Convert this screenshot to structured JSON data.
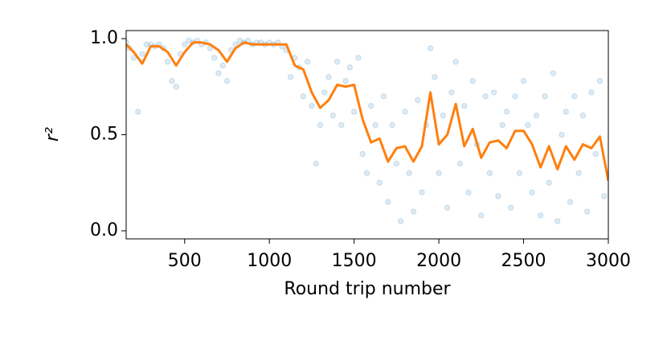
{
  "chart_data": {
    "type": "scatter",
    "xlabel": "Round trip number",
    "ylabel": "r²",
    "xlim": [
      155,
      3000
    ],
    "ylim": [
      -0.042,
      1.042
    ],
    "xticks": [
      500,
      1000,
      1500,
      2000,
      2500,
      3000
    ],
    "yticks": [
      {
        "value": 0,
        "label": "0.0"
      },
      {
        "value": 0.5,
        "label": "0.5"
      },
      {
        "value": 1,
        "label": "1.0"
      }
    ],
    "series": [
      {
        "type": "scatter",
        "color": "#1f77b4",
        "x": [
          155,
          175,
          200,
          225,
          250,
          275,
          300,
          325,
          350,
          375,
          400,
          425,
          450,
          475,
          500,
          525,
          550,
          575,
          600,
          625,
          650,
          675,
          700,
          725,
          750,
          775,
          800,
          825,
          850,
          875,
          900,
          925,
          950,
          975,
          1000,
          1025,
          1050,
          1075,
          1100,
          1125,
          1150,
          1175,
          1200,
          1225,
          1250,
          1275,
          1300,
          1325,
          1350,
          1375,
          1400,
          1425,
          1450,
          1475,
          1500,
          1525,
          1550,
          1575,
          1600,
          1625,
          1650,
          1675,
          1700,
          1725,
          1750,
          1775,
          1800,
          1825,
          1850,
          1875,
          1900,
          1925,
          1950,
          1975,
          2000,
          2025,
          2050,
          2075,
          2100,
          2125,
          2150,
          2175,
          2200,
          2225,
          2250,
          2275,
          2300,
          2325,
          2350,
          2375,
          2400,
          2425,
          2450,
          2475,
          2500,
          2525,
          2550,
          2575,
          2600,
          2625,
          2650,
          2675,
          2700,
          2725,
          2750,
          2775,
          2800,
          2825,
          2850,
          2875,
          2900,
          2925,
          2950,
          2975
        ],
        "values": [
          0.98,
          0.95,
          0.9,
          0.62,
          0.92,
          0.97,
          0.97,
          0.96,
          0.97,
          0.95,
          0.88,
          0.78,
          0.75,
          0.92,
          0.97,
          0.99,
          0.98,
          0.99,
          0.97,
          0.98,
          0.95,
          0.9,
          0.82,
          0.86,
          0.78,
          0.94,
          0.97,
          0.99,
          0.98,
          0.99,
          0.97,
          0.98,
          0.98,
          0.97,
          0.98,
          0.97,
          0.98,
          0.96,
          0.94,
          0.8,
          0.9,
          0.85,
          0.7,
          0.88,
          0.65,
          0.35,
          0.55,
          0.72,
          0.8,
          0.6,
          0.88,
          0.55,
          0.78,
          0.85,
          0.62,
          0.9,
          0.4,
          0.3,
          0.65,
          0.55,
          0.25,
          0.7,
          0.15,
          0.55,
          0.35,
          0.05,
          0.62,
          0.3,
          0.1,
          0.68,
          0.2,
          0.55,
          0.95,
          0.8,
          0.3,
          0.6,
          0.12,
          0.72,
          0.88,
          0.35,
          0.65,
          0.2,
          0.78,
          0.45,
          0.08,
          0.7,
          0.3,
          0.72,
          0.18,
          0.55,
          0.62,
          0.12,
          0.7,
          0.3,
          0.78,
          0.55,
          0.2,
          0.6,
          0.08,
          0.7,
          0.25,
          0.82,
          0.05,
          0.5,
          0.62,
          0.15,
          0.7,
          0.3,
          0.6,
          0.1,
          0.72,
          0.4,
          0.78,
          0.18
        ]
      },
      {
        "type": "line",
        "color": "#ff7f0e",
        "x": [
          155,
          200,
          250,
          300,
          350,
          400,
          450,
          500,
          550,
          600,
          650,
          700,
          750,
          800,
          850,
          900,
          950,
          1000,
          1050,
          1100,
          1150,
          1200,
          1250,
          1300,
          1350,
          1400,
          1450,
          1500,
          1550,
          1600,
          1650,
          1700,
          1750,
          1800,
          1850,
          1900,
          1950,
          2000,
          2050,
          2100,
          2150,
          2200,
          2250,
          2300,
          2350,
          2400,
          2450,
          2500,
          2550,
          2600,
          2650,
          2700,
          2750,
          2800,
          2850,
          2900,
          2950,
          3000
        ],
        "values": [
          0.97,
          0.93,
          0.87,
          0.96,
          0.96,
          0.93,
          0.86,
          0.93,
          0.98,
          0.98,
          0.97,
          0.94,
          0.88,
          0.95,
          0.98,
          0.97,
          0.97,
          0.97,
          0.97,
          0.97,
          0.86,
          0.84,
          0.72,
          0.64,
          0.68,
          0.76,
          0.75,
          0.76,
          0.58,
          0.46,
          0.48,
          0.36,
          0.43,
          0.44,
          0.36,
          0.44,
          0.72,
          0.45,
          0.5,
          0.66,
          0.44,
          0.53,
          0.38,
          0.46,
          0.47,
          0.43,
          0.52,
          0.52,
          0.45,
          0.33,
          0.44,
          0.32,
          0.44,
          0.37,
          0.45,
          0.43,
          0.49,
          0.26
        ]
      }
    ]
  }
}
